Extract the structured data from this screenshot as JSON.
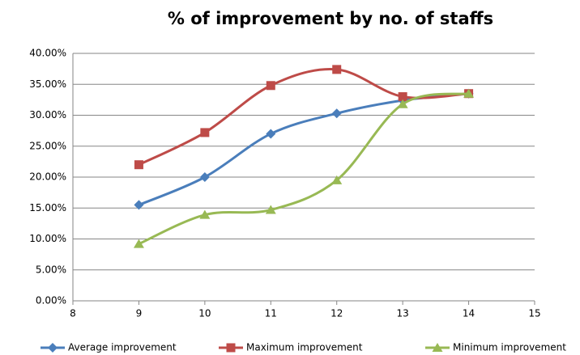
{
  "chart_data": {
    "type": "line",
    "title": "% of improvement by no. of staffs",
    "x": [
      9,
      10,
      11,
      12,
      13,
      14
    ],
    "series": [
      {
        "name": "Average improvement",
        "color": "#4a7ebb",
        "marker": "diamond",
        "values": [
          15.5,
          20,
          27,
          30.3,
          32.4,
          33.5
        ]
      },
      {
        "name": "Maximum improvement",
        "color": "#be4b48",
        "marker": "square",
        "values": [
          22,
          27.2,
          34.8,
          37.4,
          33,
          33.5
        ]
      },
      {
        "name": "Minimum improvement",
        "color": "#98b954",
        "marker": "triangle",
        "values": [
          9.2,
          13.9,
          14.7,
          19.5,
          31.8,
          33.5
        ]
      }
    ],
    "smooth": true,
    "xlim": [
      8,
      15
    ],
    "xticks": [
      8,
      9,
      10,
      11,
      12,
      13,
      14,
      15
    ],
    "ylim": [
      0,
      40
    ],
    "yticks": [
      {
        "value": 0,
        "label": "0.00%"
      },
      {
        "value": 5,
        "label": "5.00%"
      },
      {
        "value": 10,
        "label": "10.00%"
      },
      {
        "value": 15,
        "label": "15.00%"
      },
      {
        "value": 20,
        "label": "20.00%"
      },
      {
        "value": 25,
        "label": "25.00%"
      },
      {
        "value": 30,
        "label": "30.00%"
      },
      {
        "value": 35,
        "label": "35.00%"
      },
      {
        "value": 40,
        "label": "40.00%"
      }
    ],
    "grid": true,
    "legend": "bottom"
  }
}
